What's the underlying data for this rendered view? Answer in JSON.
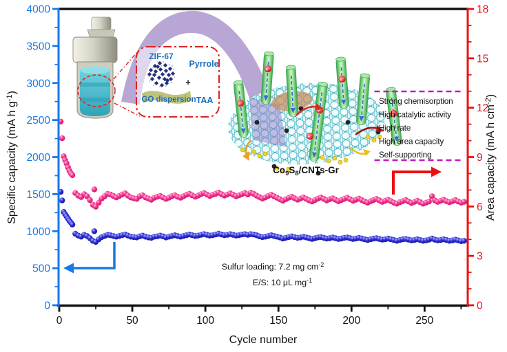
{
  "chart_data": {
    "type": "scatter",
    "title": "",
    "xlabel": "Cycle number",
    "xlim": [
      0,
      280
    ],
    "x_ticks": [
      0,
      50,
      100,
      150,
      200,
      250
    ],
    "x_minor_step": 25,
    "grid": false,
    "legend_position": "none",
    "left_axis": {
      "label_text": "Specific capacity (mA h g",
      "label_sup": "-1",
      "label_close": ")",
      "lim": [
        0,
        4000
      ],
      "ticks": [
        0,
        500,
        1000,
        1500,
        2000,
        2500,
        3000,
        3500,
        4000
      ],
      "minor_step": 250,
      "color": "#1878e8"
    },
    "right_axis": {
      "label_text": "Area capacity (mA h cm",
      "label_sup": "-2",
      "label_close": ")",
      "lim": [
        0,
        18
      ],
      "ticks": [
        0,
        3,
        6,
        9,
        12,
        15,
        18
      ],
      "minor_step": 1,
      "color": "#ea1212"
    },
    "series": [
      {
        "name": "area-capacity-pink",
        "axis": "right",
        "unit": "mA h cm-2",
        "color": "#f5348f",
        "gradient": "gradPink",
        "initial_points": [
          [
            1,
            11.16
          ],
          [
            2,
            10.15
          ],
          [
            3,
            9.05
          ],
          [
            4,
            8.82
          ],
          [
            5,
            8.62
          ],
          [
            6,
            8.37
          ],
          [
            7,
            8.17
          ],
          [
            8,
            8.01
          ],
          [
            9,
            7.9
          ]
        ],
        "band": {
          "x_start": 11,
          "x_step": 2,
          "values": [
            6.82,
            6.66,
            6.57,
            6.75,
            6.62,
            6.39,
            6.1,
            5.99,
            6.23,
            6.48,
            6.62,
            6.77,
            6.73,
            6.64,
            6.55,
            6.64,
            6.73,
            6.8,
            6.66,
            6.55,
            6.5,
            6.46,
            6.62,
            6.68,
            6.55,
            6.48,
            6.41,
            6.53,
            6.59,
            6.64,
            6.55,
            6.46,
            6.53,
            6.62,
            6.68,
            6.59,
            6.53,
            6.62,
            6.71,
            6.77,
            6.68,
            6.59,
            6.66,
            6.75,
            6.82,
            6.73,
            6.64,
            6.71,
            6.77,
            6.84,
            6.75,
            6.66,
            6.73,
            6.8,
            6.71,
            6.62,
            6.68,
            6.75,
            6.82,
            6.73,
            6.84,
            6.77,
            6.66,
            6.57,
            6.48,
            6.55,
            6.64,
            6.71,
            6.62,
            6.53,
            6.44,
            6.35,
            6.44,
            6.53,
            6.59,
            6.5,
            6.41,
            6.48,
            6.55,
            6.46,
            6.37,
            6.3,
            6.39,
            6.48,
            6.55,
            6.46,
            6.37,
            6.44,
            6.5,
            6.41,
            6.32,
            6.39,
            6.46,
            6.53,
            6.44,
            6.35,
            6.41,
            6.48,
            6.39,
            6.3,
            6.23,
            6.32,
            6.39,
            6.46,
            6.37,
            6.28,
            6.35,
            6.41,
            6.32,
            6.23,
            6.17,
            6.26,
            6.32,
            6.39,
            6.3,
            6.21,
            6.28,
            6.35,
            6.26,
            6.17,
            6.23,
            6.3,
            6.62,
            6.37,
            6.28,
            6.35,
            6.41,
            6.32,
            6.26,
            6.32,
            6.39,
            6.3,
            6.23,
            6.28
          ]
        },
        "extra_points": [
          [
            24,
            7.04
          ]
        ]
      },
      {
        "name": "specific-capacity-blue",
        "axis": "left",
        "unit": "mA h g-1",
        "color": "#2d2dd4",
        "gradient": "gradBlue",
        "initial_points": [
          [
            1,
            1530
          ],
          [
            2,
            1415
          ],
          [
            3,
            1260
          ],
          [
            4,
            1230
          ],
          [
            5,
            1200
          ],
          [
            6,
            1170
          ],
          [
            7,
            1140
          ],
          [
            8,
            1115
          ],
          [
            9,
            1090
          ]
        ],
        "band": {
          "x_start": 11,
          "x_step": 2,
          "values": [
            965,
            940,
            925,
            950,
            935,
            905,
            870,
            855,
            890,
            920,
            935,
            950,
            945,
            935,
            925,
            935,
            945,
            955,
            940,
            925,
            920,
            915,
            930,
            940,
            925,
            915,
            910,
            925,
            930,
            940,
            930,
            915,
            925,
            935,
            945,
            935,
            925,
            935,
            945,
            955,
            945,
            935,
            940,
            950,
            960,
            950,
            940,
            945,
            955,
            965,
            955,
            945,
            950,
            960,
            950,
            940,
            945,
            955,
            960,
            950,
            960,
            955,
            945,
            930,
            920,
            925,
            935,
            945,
            935,
            925,
            915,
            900,
            910,
            920,
            930,
            920,
            910,
            915,
            925,
            915,
            905,
            895,
            905,
            915,
            920,
            910,
            900,
            905,
            915,
            905,
            895,
            900,
            910,
            915,
            905,
            895,
            900,
            910,
            900,
            890,
            880,
            890,
            900,
            905,
            895,
            885,
            890,
            900,
            890,
            880,
            870,
            880,
            890,
            895,
            885,
            875,
            880,
            890,
            880,
            870,
            875,
            885,
            900,
            885,
            875,
            880,
            890,
            880,
            870,
            875,
            885,
            875,
            865,
            870
          ]
        },
        "extra_points": [
          [
            24,
            1000
          ]
        ]
      }
    ],
    "annotations": {
      "sulfur_loading": {
        "text": "Sulfur loading: 7.2 mg cm",
        "sup": "-2"
      },
      "es_ratio": {
        "text": "E/S: 10 μL mg",
        "sup": "-1"
      }
    }
  },
  "legend_box": {
    "items": [
      "Strong chemisorption",
      "High catalytic activity",
      "High rate",
      "High area capacity",
      "Self-supporting"
    ]
  },
  "inset": {
    "reaction_labels": {
      "zif": "ZIF-67",
      "pyrrole": "Pyrrole",
      "plus": "+",
      "go": "GO dispersion",
      "taa": "TAA"
    },
    "product_label": {
      "pre": "Co",
      "sub1": "9",
      "mid": "S",
      "sub2": "8",
      "post": "/CNTs-Gr"
    }
  },
  "colors": {
    "axis_left": "#1878e8",
    "axis_right": "#ea1212",
    "pink_series": "#f5348f",
    "blue_series": "#2d2dd4",
    "arch_purple": "#b4a2d2",
    "inset_border_red": "#e02020",
    "legend_border_top_bottom": "#c018c0"
  }
}
